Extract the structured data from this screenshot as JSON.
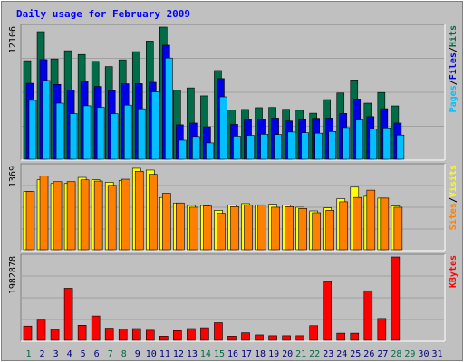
{
  "colors": {
    "background": "#c0c0c0",
    "plot_bg": "#c0c0c0",
    "grid": "#a0a0a0",
    "title": "#0000ff",
    "hits": "#006c48",
    "files": "#0000e6",
    "pages": "#00c0ff",
    "visits": "#ffff00",
    "sites": "#ff8000",
    "kbytes": "#ff0000",
    "weekend_label": "#006c48",
    "weekday_label": "#000080"
  },
  "chart_data": {
    "title": "Daily usage for February 2009",
    "type": "bar",
    "x_days": [
      "1",
      "2",
      "3",
      "4",
      "5",
      "6",
      "7",
      "8",
      "9",
      "10",
      "11",
      "12",
      "13",
      "14",
      "15",
      "16",
      "17",
      "18",
      "19",
      "20",
      "21",
      "22",
      "23",
      "24",
      "25",
      "26",
      "27",
      "28",
      "29",
      "30",
      "31"
    ],
    "weekend_days": [
      1,
      7,
      8,
      14,
      15,
      21,
      22,
      28,
      29
    ],
    "panels": [
      {
        "name": "pages-files-hits",
        "ymax_label": "12106",
        "ymax": 12106,
        "legend": [
          {
            "text": "Pages",
            "color_key": "pages"
          },
          {
            "text": "/",
            "color_key": "slash"
          },
          {
            "text": "Files",
            "color_key": "files"
          },
          {
            "text": "/",
            "color_key": "slash"
          },
          {
            "text": "Hits",
            "color_key": "hits"
          }
        ],
        "series": [
          {
            "name": "Hits",
            "color_key": "hits",
            "values": [
              9030,
              11690,
              9190,
              9940,
              9600,
              8970,
              8490,
              9110,
              9860,
              10830,
              12106,
              6360,
              6540,
              5810,
              8130,
              4510,
              4570,
              4730,
              4750,
              4580,
              4490,
              4220,
              5470,
              6070,
              7270,
              5140,
              6120,
              4890,
              0,
              0,
              0
            ]
          },
          {
            "name": "Files",
            "color_key": "files",
            "values": [
              6960,
              9130,
              6860,
              6360,
              7150,
              6670,
              6290,
              6920,
              6930,
              7050,
              10450,
              3160,
              3320,
              2980,
              7390,
              3200,
              3680,
              3670,
              3780,
              3510,
              3620,
              3760,
              3780,
              4200,
              5520,
              3910,
              4640,
              3320,
              0,
              0,
              0
            ]
          },
          {
            "name": "Pages",
            "color_key": "pages",
            "values": [
              5400,
              7220,
              5140,
              4180,
              4900,
              4760,
              4180,
              4960,
              4630,
              6170,
              9270,
              1740,
              2090,
              1500,
              5720,
              2120,
              2190,
              2290,
              2270,
              2500,
              2430,
              2390,
              2540,
              2910,
              3600,
              2770,
              2880,
              2220,
              0,
              0,
              0
            ]
          }
        ]
      },
      {
        "name": "sites-visits",
        "ymax_label": "1369",
        "ymax": 1369,
        "legend": [
          {
            "text": "Sites",
            "color_key": "sites"
          },
          {
            "text": "/",
            "color_key": "slash"
          },
          {
            "text": "Visits",
            "color_key": "visits"
          }
        ],
        "series": [
          {
            "name": "Visits",
            "color_key": "visits",
            "values": [
              960,
              1150,
              1090,
              1090,
              1190,
              1150,
              1110,
              1140,
              1340,
              1310,
              860,
              770,
              730,
              730,
              650,
              740,
              760,
              740,
              750,
              740,
              700,
              640,
              690,
              840,
              1030,
              880,
              850,
              720,
              0,
              0,
              0
            ]
          },
          {
            "name": "Sites",
            "color_key": "sites",
            "values": [
              960,
              1210,
              1120,
              1120,
              1150,
              1130,
              1060,
              1160,
              1290,
              1240,
              930,
              770,
              700,
              720,
              600,
              710,
              740,
              740,
              700,
              710,
              680,
              610,
              650,
              790,
              860,
              980,
              850,
              700,
              0,
              0,
              0
            ]
          }
        ]
      },
      {
        "name": "kbytes",
        "ymax_label": "1982878",
        "ymax": 1982878,
        "legend": [
          {
            "text": "KBytes",
            "color_key": "kbytes"
          }
        ],
        "series": [
          {
            "name": "KBytes",
            "color_key": "kbytes",
            "values": [
              340000,
              480000,
              260000,
              1240000,
              360000,
              580000,
              290000,
              270000,
              280000,
              240000,
              100000,
              230000,
              280000,
              300000,
              420000,
              100000,
              180000,
              130000,
              110000,
              110000,
              110000,
              350000,
              1400000,
              170000,
              170000,
              1180000,
              520000,
              1982878,
              0,
              0,
              0
            ]
          }
        ]
      }
    ]
  }
}
